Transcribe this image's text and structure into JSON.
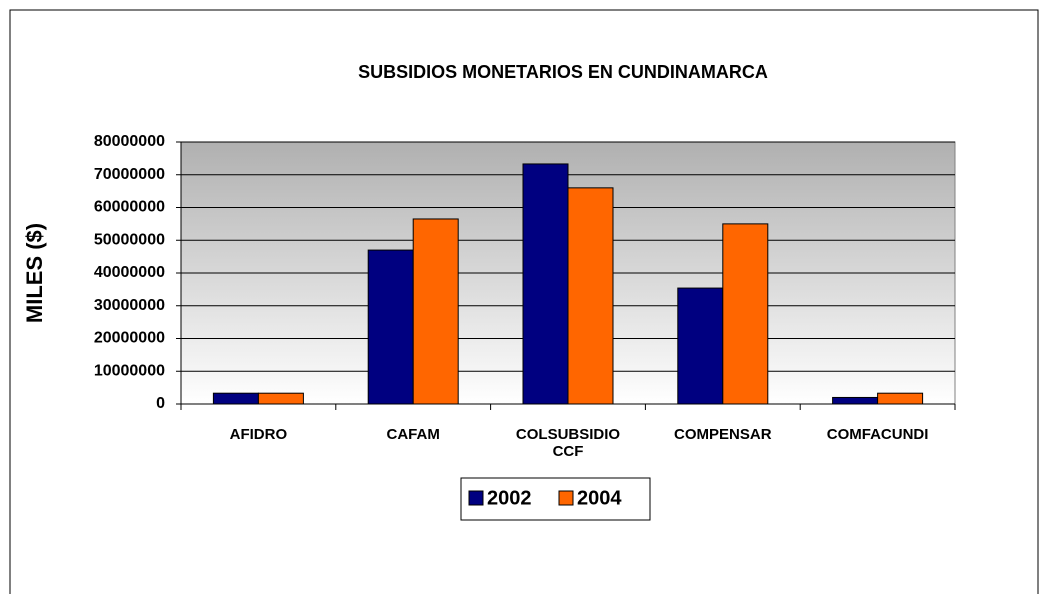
{
  "chart_data": {
    "type": "bar",
    "title": "SUBSIDIOS MONETARIOS EN CUNDINAMARCA",
    "y_label": "MILES ($)",
    "categories": [
      "AFIDRO",
      "CAFAM",
      "COLSUBSIDIO CCF",
      "COMPENSAR",
      "COMFACUNDI"
    ],
    "series": [
      {
        "name": "2002",
        "color": "#000080",
        "values": [
          3300000,
          47000000,
          73300000,
          35400000,
          2000000
        ]
      },
      {
        "name": "2004",
        "color": "#ff6600",
        "values": [
          3300000,
          56500000,
          66000000,
          55000000,
          3300000
        ]
      }
    ],
    "ylim": [
      0,
      80000000
    ],
    "yticks": [
      0,
      10000000,
      20000000,
      30000000,
      40000000,
      50000000,
      60000000,
      70000000,
      80000000
    ],
    "grid": true,
    "legend": "bottom"
  }
}
